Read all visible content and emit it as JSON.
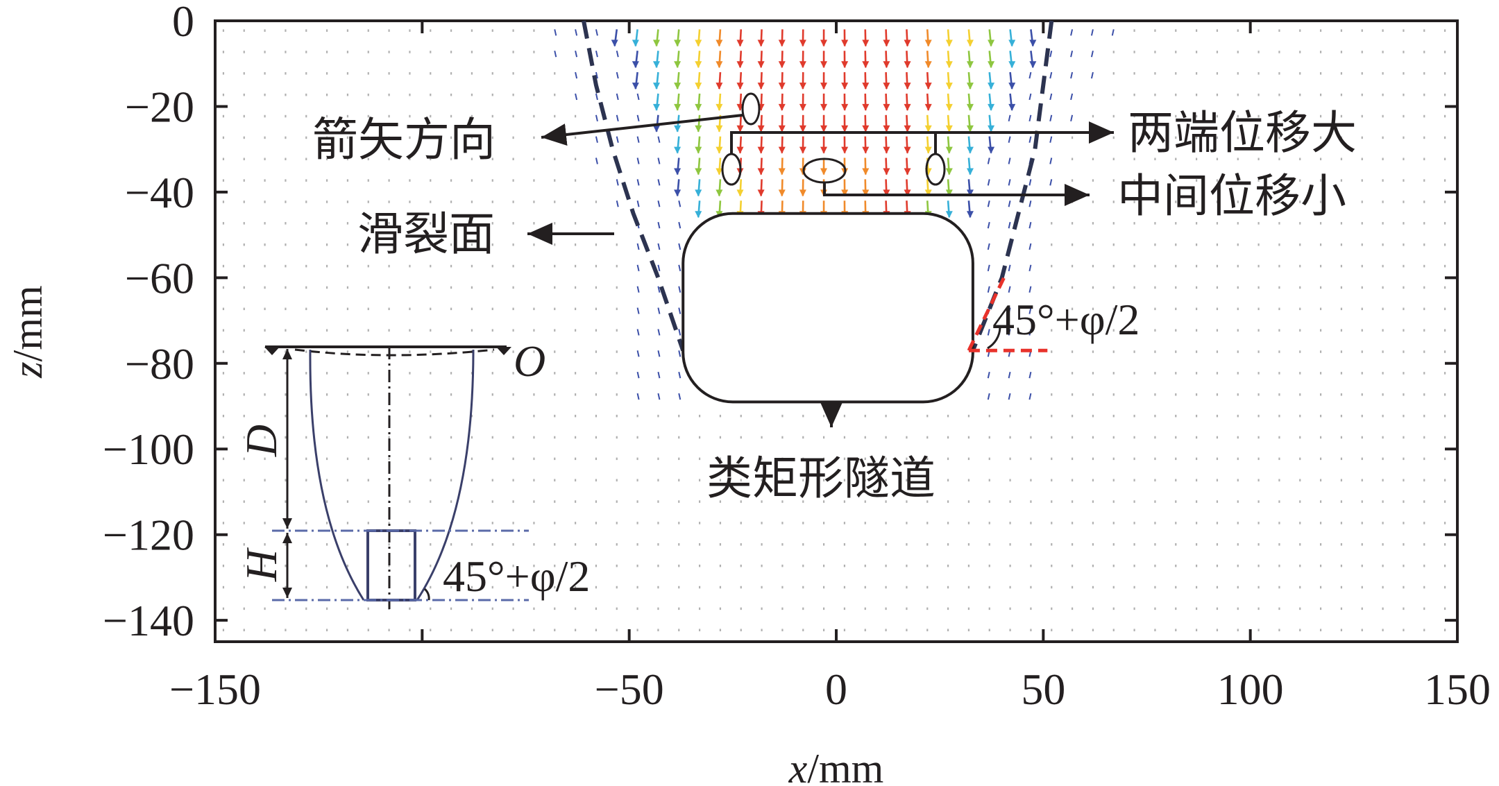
{
  "chart_data": {
    "type": "scatter",
    "subtype": "displacement-vector-field",
    "title": "",
    "xlabel": {
      "var": "x",
      "unit": "/mm"
    },
    "ylabel": {
      "var": "z",
      "unit": "/mm"
    },
    "xlim": [
      -150,
      150
    ],
    "ylim": [
      -145,
      0
    ],
    "x_ticks": [
      "−150",
      "−50",
      "0",
      "50",
      "100",
      "150"
    ],
    "x_tick_values": [
      -150,
      -50,
      0,
      50,
      100,
      150
    ],
    "x_minor_ticks": [
      -100
    ],
    "y_ticks": [
      "0",
      "−20",
      "−40",
      "−60",
      "−80",
      "−100",
      "−120",
      "−140"
    ],
    "y_tick_values": [
      0,
      -20,
      -40,
      -60,
      -80,
      -100,
      -120,
      -140
    ],
    "grid": false,
    "field": {
      "x_range": [
        -148,
        148
      ],
      "z_range": [
        -143,
        -2
      ],
      "spacing": 5,
      "affected_zone_top_halfwidth": 52,
      "affected_zone_bottom_halfwidth": 33,
      "affected_zone_depth": [
        0,
        -45
      ],
      "arrow_colors": [
        "#e03a2c",
        "#f08a2a",
        "#f4d030",
        "#8ec63f",
        "#36b0d8",
        "#3b4fa8",
        "#b0b0b0"
      ]
    },
    "slip_surface": {
      "left": [
        [
          -61,
          0
        ],
        [
          -58,
          -15
        ],
        [
          -54,
          -30
        ],
        [
          -49,
          -45
        ],
        [
          -43,
          -60
        ],
        [
          -37,
          -77
        ]
      ],
      "right": [
        [
          52,
          0
        ],
        [
          50,
          -15
        ],
        [
          48,
          -30
        ],
        [
          44,
          -45
        ],
        [
          40,
          -60
        ],
        [
          33,
          -77
        ]
      ]
    },
    "tunnel": {
      "x": [
        -37,
        33
      ],
      "z": [
        -45,
        -89
      ],
      "corner_radius": 12
    },
    "angle_mark": {
      "vertex": [
        32,
        -77
      ],
      "horizontal_to_x": 51,
      "inclined_to": [
        41,
        -59
      ]
    },
    "annotations": {
      "arrow_direction": "箭矢方向",
      "slip_surface": "滑裂面",
      "both_ends": "两端位移大",
      "middle": "中间位移小",
      "tunnel": "类矩形隧道",
      "angle_main": "45°+φ/2"
    },
    "inset": {
      "origin_label": "O",
      "D_label": "D",
      "H_label": "H",
      "angle": "45°+φ/2"
    }
  }
}
